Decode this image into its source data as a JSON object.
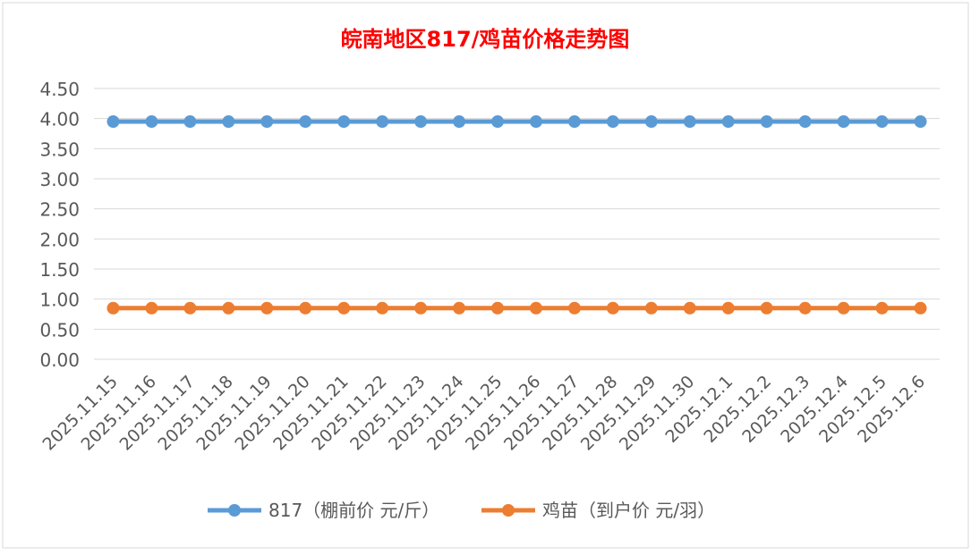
{
  "chart_data": {
    "type": "line",
    "title": "皖南地区817/鸡苗价格走势图",
    "xlabel": "",
    "ylabel": "",
    "ylim": [
      0,
      4.5
    ],
    "yticks": [
      "0.00",
      "0.50",
      "1.00",
      "1.50",
      "2.00",
      "2.50",
      "3.00",
      "3.50",
      "4.00",
      "4.50"
    ],
    "grid": true,
    "legend_position": "bottom",
    "categories": [
      "2025.11.15",
      "2025.11.16",
      "2025.11.17",
      "2025.11.18",
      "2025.11.19",
      "2025.11.20",
      "2025.11.21",
      "2025.11.22",
      "2025.11.23",
      "2025.11.24",
      "2025.11.25",
      "2025.11.26",
      "2025.11.27",
      "2025.11.28",
      "2025.11.29",
      "2025.11.30",
      "2025.12.1",
      "2025.12.2",
      "2025.12.3",
      "2025.12.4",
      "2025.12.5",
      "2025.12.6"
    ],
    "series": [
      {
        "name": "817（棚前价 元/斤）",
        "color": "#5B9BD5",
        "values": [
          3.95,
          3.95,
          3.95,
          3.95,
          3.95,
          3.95,
          3.95,
          3.95,
          3.95,
          3.95,
          3.95,
          3.95,
          3.95,
          3.95,
          3.95,
          3.95,
          3.95,
          3.95,
          3.95,
          3.95,
          3.95,
          3.95
        ]
      },
      {
        "name": "鸡苗（到户价 元/羽）",
        "color": "#ED7D31",
        "values": [
          0.85,
          0.85,
          0.85,
          0.85,
          0.85,
          0.85,
          0.85,
          0.85,
          0.85,
          0.85,
          0.85,
          0.85,
          0.85,
          0.85,
          0.85,
          0.85,
          0.85,
          0.85,
          0.85,
          0.85,
          0.85,
          0.85
        ]
      }
    ],
    "title_color": "#FF0000"
  }
}
